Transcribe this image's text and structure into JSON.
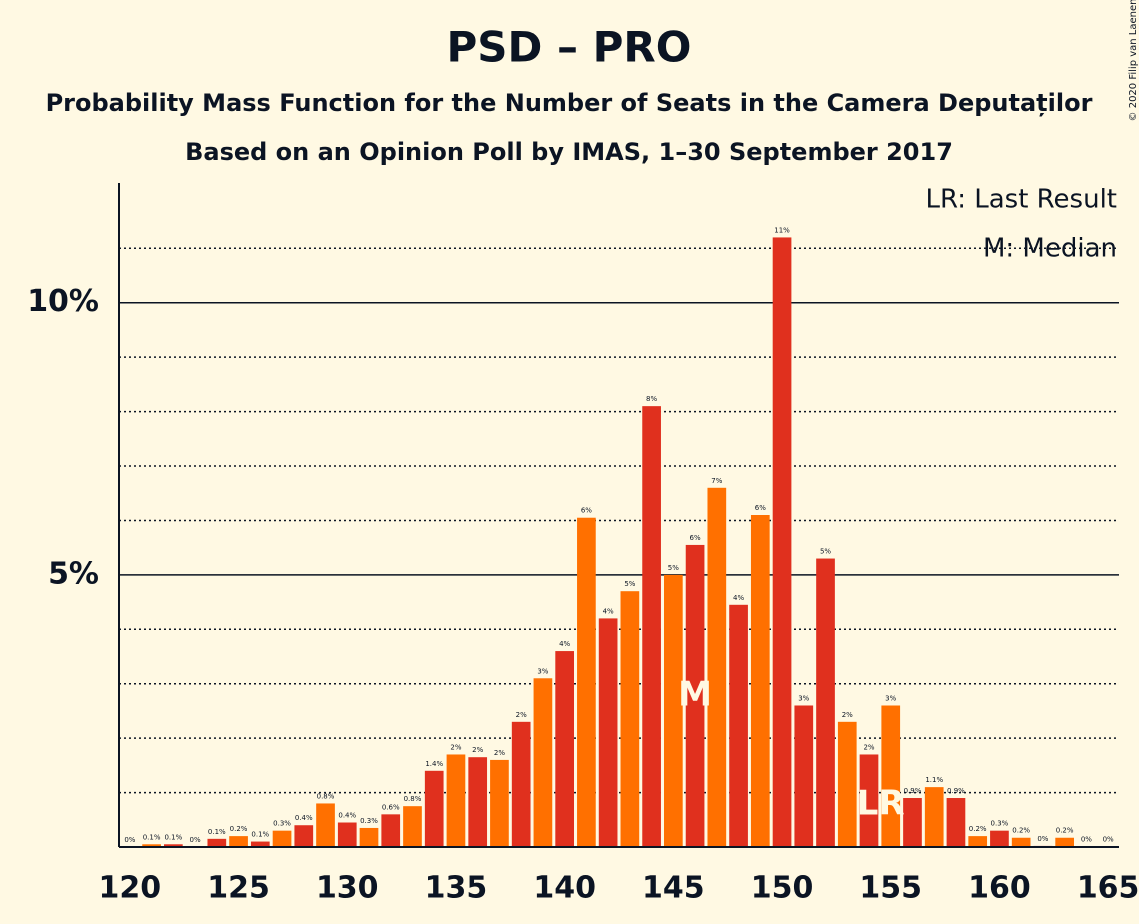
{
  "chart_data": {
    "type": "bar",
    "title": "PSD – PRO",
    "subtitle": "Probability Mass Function for the Number of Seats in the Camera Deputaților",
    "subtitle2": "Based on an Opinion Poll by IMAS, 1–30 September 2017",
    "copyright": "© 2020 Filip van Laenen",
    "x": [
      120,
      121,
      122,
      123,
      124,
      125,
      126,
      127,
      128,
      129,
      130,
      131,
      132,
      133,
      134,
      135,
      136,
      137,
      138,
      139,
      140,
      141,
      142,
      143,
      144,
      145,
      146,
      147,
      148,
      149,
      150,
      151,
      152,
      153,
      154,
      155,
      156,
      157,
      158,
      159,
      160,
      161,
      162,
      163,
      164,
      165
    ],
    "values": [
      0,
      0.05,
      0.05,
      0,
      0.15,
      0.2,
      0.1,
      0.3,
      0.4,
      0.8,
      0.45,
      0.35,
      0.6,
      0.75,
      1.4,
      1.7,
      1.65,
      1.6,
      2.3,
      3.1,
      3.6,
      6.05,
      4.2,
      4.7,
      8.1,
      5.0,
      5.55,
      6.6,
      4.45,
      6.1,
      11.2,
      2.6,
      5.3,
      2.3,
      1.7,
      2.6,
      0.9,
      1.1,
      0.9,
      0.2,
      0.3,
      0.17,
      0.02,
      0.17,
      0.01,
      0.01
    ],
    "value_labels": [
      "0%",
      "0.1%",
      "0.1%",
      "0%",
      "0.1%",
      "0.2%",
      "0.1%",
      "0.3%",
      "0.4%",
      "0.8%",
      "0.4%",
      "0.3%",
      "0.6%",
      "0.8%",
      "1.4%",
      "2%",
      "2%",
      "2%",
      "2%",
      "3%",
      "4%",
      "6%",
      "4%",
      "5%",
      "8%",
      "5%",
      "6%",
      "7%",
      "4%",
      "6%",
      "11%",
      "3%",
      "5%",
      "2%",
      "2%",
      "3%",
      "0.9%",
      "1.1%",
      "0.9%",
      "0.2%",
      "0.3%",
      "0.2%",
      "0%",
      "0.2%",
      "0%",
      "0%"
    ],
    "colors": [
      "#e0301e",
      "#ff7000",
      "#e0301e",
      "#ff7000",
      "#e0301e",
      "#ff7000",
      "#e0301e",
      "#ff7000",
      "#e0301e",
      "#ff7000",
      "#e0301e",
      "#ff7000",
      "#e0301e",
      "#ff7000",
      "#e0301e",
      "#ff7000",
      "#e0301e",
      "#ff7000",
      "#e0301e",
      "#ff7000",
      "#e0301e",
      "#ff7000",
      "#e0301e",
      "#ff7000",
      "#e0301e",
      "#ff7000",
      "#e0301e",
      "#ff7000",
      "#e0301e",
      "#ff7000",
      "#e0301e",
      "#e0301e",
      "#e0301e",
      "#ff7000",
      "#e0301e",
      "#ff7000",
      "#e0301e",
      "#ff7000",
      "#e0301e",
      "#ff7000",
      "#e0301e",
      "#ff7000",
      "#e0301e",
      "#ff7000",
      "#e0301e",
      "#ff7000"
    ],
    "xlim": [
      119.5,
      165.5
    ],
    "xticks": [
      120,
      125,
      130,
      135,
      140,
      145,
      150,
      155,
      160,
      165
    ],
    "ylim": [
      0,
      12.2
    ],
    "yticks": [
      {
        "value": 5,
        "label": "5%"
      },
      {
        "value": 10,
        "label": "10%"
      }
    ],
    "minor_grid": [
      1,
      2,
      3,
      4,
      6,
      7,
      8,
      9,
      11
    ],
    "markers": [
      {
        "label": "M",
        "x": 146
      },
      {
        "label": "LR",
        "x": 155
      }
    ],
    "legend": [
      "LR: Last Result",
      "M: Median"
    ]
  }
}
